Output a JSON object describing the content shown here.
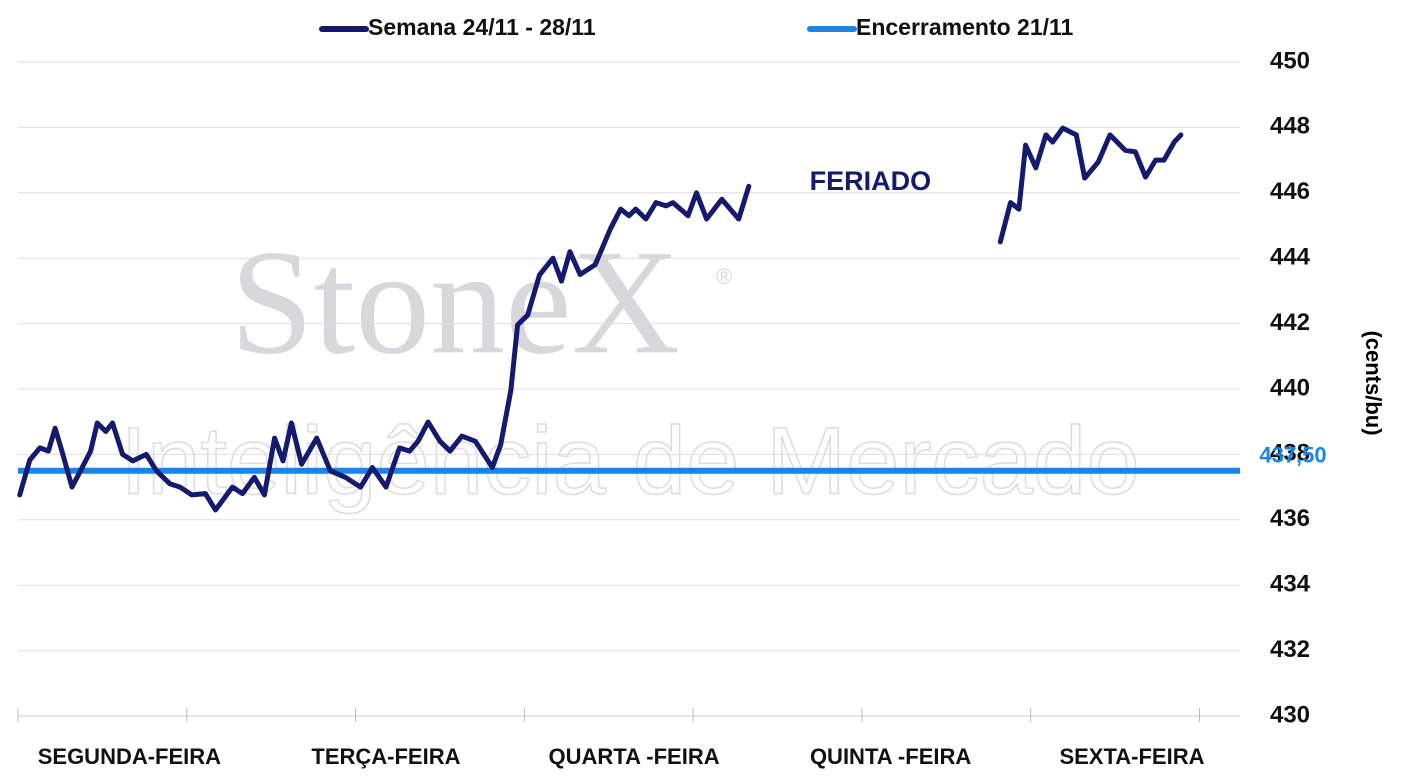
{
  "chart_data": {
    "type": "line",
    "watermark": {
      "brand": "StoneX",
      "mark": "®",
      "tagline": "Inteligência de Mercado"
    },
    "y_label": "(cents/bu)",
    "ylim": [
      430,
      450
    ],
    "yticks": [
      430,
      432,
      434,
      436,
      438,
      440,
      442,
      444,
      446,
      448,
      450
    ],
    "xlim": [
      0,
      7.24
    ],
    "xticks": [
      0,
      1,
      2,
      3,
      4,
      5,
      6,
      7
    ],
    "day_labels": [
      {
        "value": 0.66,
        "label": "SEGUNDA-FEIRA"
      },
      {
        "value": 2.18,
        "label": "TERÇA-FEIRA"
      },
      {
        "value": 3.65,
        "label": "QUARTA -FEIRA"
      },
      {
        "value": 5.17,
        "label": "QUINTA -FEIRA"
      },
      {
        "value": 6.6,
        "label": "SEXTA-FEIRA"
      }
    ],
    "grid": true,
    "series": [
      {
        "name": "Semana 24/11 - 28/11",
        "color": "#141a6e",
        "x": [
          0.01,
          0.07,
          0.13,
          0.18,
          0.22,
          0.26,
          0.32,
          0.37,
          0.43,
          0.47,
          0.52,
          0.56,
          0.62,
          0.68,
          0.76,
          0.82,
          0.9,
          0.96,
          1.03,
          1.11,
          1.17,
          1.27,
          1.33,
          1.4,
          1.46,
          1.52,
          1.57,
          1.62,
          1.68,
          1.77,
          1.85,
          1.94,
          2.03,
          2.1,
          2.18,
          2.26,
          2.32,
          2.37,
          2.43,
          2.5,
          2.56,
          2.63,
          2.71,
          2.81,
          2.86,
          2.92,
          2.96,
          3.02,
          3.09,
          3.17,
          3.22,
          3.27,
          3.33,
          3.42,
          3.51,
          3.57,
          3.62,
          3.66,
          3.72,
          3.78,
          3.84,
          3.88,
          3.97,
          4.02,
          4.08,
          4.17,
          4.27,
          4.33,
          5.0,
          5.82,
          5.88,
          5.93,
          5.97,
          6.03,
          6.09,
          6.13,
          6.19,
          6.27,
          6.32,
          6.4,
          6.47,
          6.56,
          6.62,
          6.68,
          6.74,
          6.79,
          6.85,
          6.89
        ],
        "values": [
          436.76,
          437.83,
          438.2,
          438.1,
          438.8,
          438.1,
          437.0,
          437.5,
          438.1,
          438.96,
          438.7,
          438.96,
          438.0,
          437.8,
          438.0,
          437.5,
          437.1,
          437.0,
          436.76,
          436.8,
          436.3,
          437.0,
          436.8,
          437.3,
          436.76,
          438.5,
          437.8,
          438.96,
          437.7,
          438.5,
          437.5,
          437.3,
          437.0,
          437.6,
          437.0,
          438.2,
          438.1,
          438.4,
          438.99,
          438.4,
          438.1,
          438.56,
          438.4,
          437.6,
          438.3,
          439.97,
          441.96,
          442.26,
          443.49,
          444.0,
          443.3,
          444.2,
          443.5,
          443.8,
          444.9,
          445.5,
          445.3,
          445.5,
          445.2,
          445.7,
          445.6,
          445.7,
          445.3,
          446.0,
          445.2,
          445.8,
          445.2,
          446.2,
          null,
          444.5,
          445.7,
          445.5,
          447.46,
          446.76,
          447.77,
          447.55,
          447.98,
          447.77,
          446.45,
          446.94,
          447.77,
          447.3,
          447.25,
          446.48,
          447.0,
          447.0,
          447.55,
          447.77
        ]
      }
    ],
    "reference_line": {
      "name": "Encerramento 21/11",
      "color": "#1a85e8",
      "value": 437.5,
      "value_label": "437,50"
    },
    "annotations": [
      {
        "text": "FERIADO",
        "x": 5.05,
        "y": 446.3
      }
    ]
  }
}
